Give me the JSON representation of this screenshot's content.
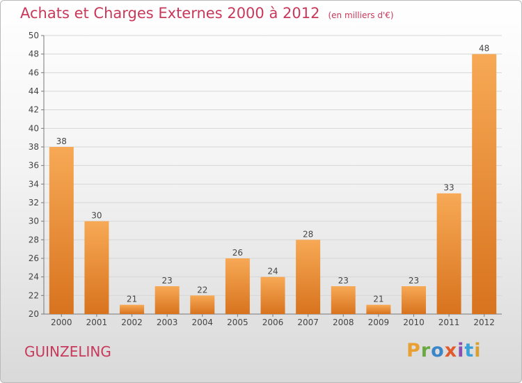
{
  "chart_data": {
    "type": "bar",
    "title": "Achats et Charges Externes 2000 à 2012",
    "subtitle": "(en milliers d'€)",
    "categories": [
      "2000",
      "2001",
      "2002",
      "2003",
      "2004",
      "2005",
      "2006",
      "2007",
      "2008",
      "2009",
      "2010",
      "2011",
      "2012"
    ],
    "values": [
      38,
      30,
      21,
      23,
      22,
      26,
      24,
      28,
      23,
      21,
      23,
      33,
      48
    ],
    "ylim": [
      20,
      50
    ],
    "yticks": [
      20,
      22,
      24,
      26,
      28,
      30,
      32,
      34,
      36,
      38,
      40,
      42,
      44,
      46,
      48,
      50
    ],
    "grid": true,
    "xlabel": "",
    "ylabel": "",
    "colors": {
      "bar_light": "#f7a955",
      "bar_dark": "#d8731e",
      "title": "#c8385a"
    }
  },
  "footer": {
    "place": "GUINZELING",
    "logo_letters": [
      "P",
      "r",
      "o",
      "x",
      "i",
      "t",
      "i"
    ],
    "logo_colors": [
      "#e9a033",
      "#6aa842",
      "#3a86c8",
      "#e05a2c",
      "#8a4fb0",
      "#3aa0d8",
      "#d8a032"
    ]
  }
}
